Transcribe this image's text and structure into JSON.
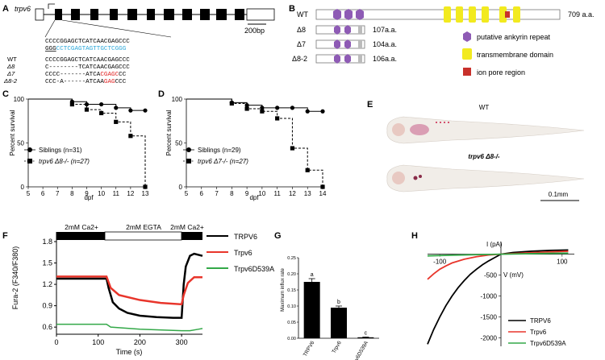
{
  "panels": {
    "A": {
      "letter": "A",
      "gene": "trpv6",
      "scale": "200bp",
      "ref_seq_1": "CCCCGGAGCTCATCAACGAGCCC",
      "pam": "GGG",
      "target": "CCTCGAGTAGTTGCTCGGG",
      "rows": [
        {
          "label": "WT",
          "seq_black": "CCCCGGAGCTCATCAACGAGCCC",
          "seq_red": "",
          "seq_tail": ""
        },
        {
          "label": "Δ8",
          "seq_black": "C--------TCATCAACGAGCCC",
          "seq_red": "",
          "seq_tail": ""
        },
        {
          "label": "Δ7",
          "seq_black": "CCCC-------ATCA",
          "seq_red": "CGAGC",
          "seq_tail": "CC"
        },
        {
          "label": "Δ8-2",
          "seq_black": "CCC-A------ATCAA",
          "seq_red": "GAG",
          "seq_tail": "CCC"
        }
      ]
    },
    "B": {
      "letter": "B",
      "rows": [
        {
          "label": "WT",
          "length": "709 a.a."
        },
        {
          "label": "Δ8",
          "length": "107a.a."
        },
        {
          "label": "Δ7",
          "length": "104a.a."
        },
        {
          "label": "Δ8-2",
          "length": "106a.a."
        }
      ],
      "legend": [
        {
          "label": "putative ankyrin repeat",
          "color": "#8e5bb5"
        },
        {
          "label": "transmembrane domain",
          "color": "#f2ea1f"
        },
        {
          "label": "ion pore region",
          "color": "#c8312b"
        }
      ]
    },
    "C": {
      "letter": "C",
      "ylabel": "Percent survival",
      "xlabel": "dpf",
      "legend": [
        "Siblings (n=31)",
        "trpv6 Δ8-/- (n=27)"
      ]
    },
    "D": {
      "letter": "D",
      "ylabel": "Percent survival",
      "xlabel": "dpf",
      "legend": [
        "Siblings (n=29)",
        "trpv6 Δ7-/- (n=27)"
      ]
    },
    "E": {
      "letter": "E",
      "wt": "WT",
      "mut": "trpv6 Δ8-/-",
      "scale": "0.1mm"
    },
    "F": {
      "letter": "F",
      "conditions": [
        "2mM Ca2+",
        "2mM EGTA",
        "2mM Ca2+"
      ],
      "ylabel": "Fura-2 (F340/F380)",
      "xlabel": "Time (s)",
      "legend": [
        "TRPV6",
        "Trpv6",
        "Trpv6D539A"
      ]
    },
    "G": {
      "letter": "G",
      "ylabel": "Maximum influx rate"
    },
    "H": {
      "letter": "H",
      "ylabel": "I (pA)",
      "xlabel": "V (mV)",
      "legend": [
        "TRPV6",
        "Trpv6",
        "Trpv6D539A"
      ]
    }
  },
  "chart_data": [
    {
      "panel": "C",
      "type": "line",
      "xlabel": "dpf",
      "ylabel": "Percent survival",
      "xlim": [
        5,
        13
      ],
      "ylim": [
        0,
        100
      ],
      "xticks": [
        5,
        6,
        7,
        8,
        9,
        10,
        11,
        12,
        13
      ],
      "yticks": [
        0,
        50,
        100
      ],
      "series": [
        {
          "name": "Siblings (n=31)",
          "step": true,
          "x": [
            5,
            8,
            9,
            10,
            11,
            12,
            13
          ],
          "y": [
            100,
            97,
            94,
            94,
            90,
            87,
            87
          ]
        },
        {
          "name": "trpv6 Δ8-/- (n=27)",
          "step": true,
          "x": [
            5,
            8,
            9,
            10,
            11,
            12,
            13
          ],
          "y": [
            100,
            94,
            88,
            84,
            74,
            58,
            0
          ]
        }
      ]
    },
    {
      "panel": "D",
      "type": "line",
      "xlabel": "dpf",
      "ylabel": "Percent survival",
      "xlim": [
        5,
        14
      ],
      "ylim": [
        0,
        100
      ],
      "xticks": [
        5,
        6,
        7,
        8,
        9,
        10,
        11,
        12,
        13,
        14
      ],
      "yticks": [
        0,
        50,
        100
      ],
      "series": [
        {
          "name": "Siblings (n=29)",
          "step": true,
          "x": [
            5,
            8,
            9,
            10,
            11,
            12,
            13,
            14
          ],
          "y": [
            100,
            96,
            93,
            90,
            90,
            90,
            86,
            86
          ]
        },
        {
          "name": "trpv6 Δ7-/- (n=27)",
          "step": true,
          "x": [
            5,
            8,
            9,
            10,
            11,
            12,
            13,
            14
          ],
          "y": [
            100,
            95,
            89,
            86,
            78,
            44,
            19,
            0
          ]
        }
      ]
    },
    {
      "panel": "F",
      "type": "line",
      "xlabel": "Time (s)",
      "ylabel": "Fura-2 (F340/F380)",
      "xlim": [
        0,
        350
      ],
      "ylim": [
        0.5,
        1.8
      ],
      "xticks": [
        0,
        100,
        200,
        300
      ],
      "yticks": [
        0.6,
        0.9,
        1.2,
        1.5,
        1.8
      ],
      "series": [
        {
          "name": "TRPV6",
          "color": "#000000",
          "x": [
            0,
            120,
            125,
            135,
            150,
            170,
            200,
            240,
            280,
            300,
            305,
            310,
            320,
            330,
            350
          ],
          "y": [
            1.28,
            1.28,
            1.15,
            0.95,
            0.86,
            0.8,
            0.76,
            0.74,
            0.73,
            0.73,
            1.2,
            1.45,
            1.6,
            1.63,
            1.6
          ]
        },
        {
          "name": "Trpv6",
          "color": "#e8352b",
          "x": [
            0,
            120,
            130,
            150,
            200,
            250,
            300,
            305,
            315,
            330,
            350
          ],
          "y": [
            1.31,
            1.31,
            1.15,
            1.05,
            0.98,
            0.94,
            0.92,
            1.05,
            1.22,
            1.3,
            1.3
          ]
        },
        {
          "name": "Trpv6D539A",
          "color": "#33a848",
          "x": [
            0,
            120,
            130,
            200,
            300,
            320,
            340,
            350
          ],
          "y": [
            0.64,
            0.64,
            0.6,
            0.57,
            0.55,
            0.55,
            0.57,
            0.58
          ]
        }
      ]
    },
    {
      "panel": "G",
      "type": "bar",
      "ylabel": "Maximum influx rate",
      "categories": [
        "TRPV6",
        "Trpv6",
        "Trpv6D539A"
      ],
      "values": [
        0.175,
        0.095,
        0.003
      ],
      "errors": [
        0.01,
        0.005,
        0.001
      ],
      "annotations": [
        "a",
        "b",
        "c"
      ],
      "ylim": [
        0,
        0.25
      ],
      "yticks": [
        0.0,
        0.05,
        0.1,
        0.15,
        0.2,
        0.25
      ]
    },
    {
      "panel": "H",
      "type": "line",
      "xlabel": "V (mV)",
      "ylabel": "I (pA)",
      "xlim": [
        -120,
        120
      ],
      "ylim": [
        -2200,
        300
      ],
      "xticks": [
        -100,
        100
      ],
      "yticks": [
        -2000,
        -1500,
        -1000,
        -500
      ],
      "series": [
        {
          "name": "TRPV6",
          "color": "#000000",
          "x": [
            -120,
            -110,
            -100,
            -90,
            -80,
            -70,
            -60,
            -50,
            -40,
            -30,
            -20,
            -10,
            0,
            20,
            50,
            80,
            110
          ],
          "y": [
            -2150,
            -1800,
            -1500,
            -1230,
            -1000,
            -800,
            -630,
            -480,
            -360,
            -250,
            -160,
            -80,
            0,
            40,
            70,
            90,
            100
          ]
        },
        {
          "name": "Trpv6",
          "color": "#e8352b",
          "x": [
            -120,
            -110,
            -100,
            -90,
            -80,
            -60,
            -40,
            -20,
            0,
            40,
            80,
            110
          ],
          "y": [
            -600,
            -470,
            -360,
            -280,
            -210,
            -120,
            -60,
            -20,
            0,
            30,
            55,
            70
          ]
        },
        {
          "name": "Trpv6D539A",
          "color": "#33a848",
          "x": [
            -120,
            -80,
            -40,
            0,
            40,
            80,
            110
          ],
          "y": [
            -40,
            -25,
            -12,
            0,
            10,
            20,
            25
          ]
        }
      ]
    }
  ]
}
